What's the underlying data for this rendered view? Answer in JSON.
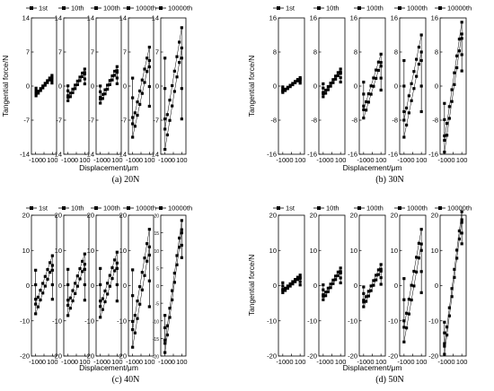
{
  "chart_data": [
    {
      "type": "scatter",
      "caption": "(a) 20N",
      "ylabel": "Tangential force/N",
      "xlabel": "Displacement/μm",
      "ylim": [
        -14,
        14
      ],
      "yticks": [
        "14",
        "7",
        "0",
        "-7",
        "-14"
      ],
      "panels": [
        {
          "legend": "1st",
          "xticks": [
            "-100",
            "0",
            "100"
          ],
          "xlim": [
            -150,
            150
          ],
          "loop": {
            "xmin": -95,
            "xmax": 95,
            "ylo": -2.0,
            "yhi": 2.2,
            "w": 20
          }
        },
        {
          "legend": "10th",
          "xticks": [
            "-100",
            "0",
            "100"
          ],
          "xlim": [
            -150,
            150
          ],
          "loop": {
            "xmin": -100,
            "xmax": 100,
            "ylo": -3.0,
            "yhi": 3.5,
            "w": 25
          }
        },
        {
          "legend": "100th",
          "xticks": [
            "-100",
            "0",
            "100"
          ],
          "xlim": [
            -150,
            150
          ],
          "loop": {
            "xmin": -100,
            "xmax": 100,
            "ylo": -3.5,
            "yhi": 4.0,
            "w": 25
          }
        },
        {
          "legend": "1000th",
          "xticks": [
            "-100",
            "0",
            "100"
          ],
          "xlim": [
            -150,
            150
          ],
          "loop": {
            "xmin": -100,
            "xmax": 100,
            "ylo": -10.5,
            "yhi": 8.0,
            "w": 35
          }
        },
        {
          "legend": "10000th",
          "xticks": [
            "-100",
            "0",
            "100"
          ],
          "xlim": [
            -150,
            150
          ],
          "loop": {
            "xmin": -100,
            "xmax": 100,
            "ylo": -13.0,
            "yhi": 12.0,
            "w": 40
          }
        }
      ]
    },
    {
      "type": "scatter",
      "caption": "(b) 30N",
      "ylabel": "Tangential force/N",
      "xlabel": "Displacement/μm",
      "ylim": [
        -16,
        16
      ],
      "yticks": [
        "16",
        "8",
        "0",
        "-8",
        "-16"
      ],
      "panels": [
        {
          "legend": "1st",
          "xticks": [
            "-100",
            "0",
            "100"
          ],
          "xlim": [
            -150,
            150
          ],
          "loop": {
            "xmin": -100,
            "xmax": 100,
            "ylo": -1.5,
            "yhi": 2.0,
            "w": 20
          }
        },
        {
          "legend": "10th",
          "xticks": [
            "-100",
            "0",
            "100"
          ],
          "xlim": [
            -150,
            150
          ],
          "loop": {
            "xmin": -100,
            "xmax": 100,
            "ylo": -2.5,
            "yhi": 4.0,
            "w": 25
          }
        },
        {
          "legend": "100th",
          "xticks": [
            "-100",
            "0",
            "100"
          ],
          "xlim": [
            -150,
            150
          ],
          "loop": {
            "xmin": -100,
            "xmax": 100,
            "ylo": -7.5,
            "yhi": 7.5,
            "w": 30
          }
        },
        {
          "legend": "1000th",
          "xticks": [
            "-100",
            "0",
            "100"
          ],
          "xlim": [
            -150,
            150
          ],
          "loop": {
            "xmin": -100,
            "xmax": 100,
            "ylo": -12.0,
            "yhi": 12.0,
            "w": 40
          }
        },
        {
          "legend": "10000th",
          "xticks": [
            "-100",
            "0",
            "100"
          ],
          "xlim": [
            -150,
            150
          ],
          "loop": {
            "xmin": -100,
            "xmax": 100,
            "ylo": -15.5,
            "yhi": 15.0,
            "w": 20
          }
        }
      ]
    },
    {
      "type": "scatter",
      "caption": "(c) 40N",
      "ylabel": "",
      "xlabel": "Displacement/μm",
      "ylim": [
        -20,
        20
      ],
      "yticks": [
        "20",
        "10",
        "0",
        "-10",
        "-20"
      ],
      "panels": [
        {
          "legend": "1st",
          "xticks": [
            "-100",
            "0",
            "100"
          ],
          "xlim": [
            -150,
            150
          ],
          "loop": {
            "xmin": -100,
            "xmax": 100,
            "ylo": -8.0,
            "yhi": 8.5,
            "w": 40
          }
        },
        {
          "legend": "10th",
          "xticks": [
            "-100",
            "0",
            "100"
          ],
          "xlim": [
            -150,
            150
          ],
          "loop": {
            "xmin": -100,
            "xmax": 100,
            "ylo": -8.5,
            "yhi": 9.0,
            "w": 40
          }
        },
        {
          "legend": "100th",
          "xticks": [
            "-100",
            "0",
            "100"
          ],
          "xlim": [
            -150,
            150
          ],
          "loop": {
            "xmin": -100,
            "xmax": 100,
            "ylo": -9.0,
            "yhi": 9.5,
            "w": 40
          }
        },
        {
          "legend": "1000th",
          "xticks": [
            "-100",
            "0",
            "100"
          ],
          "xlim": [
            -150,
            150
          ],
          "loop": {
            "xmin": -100,
            "xmax": 100,
            "ylo": -17.5,
            "yhi": 16.0,
            "w": 35
          }
        },
        {
          "legend": "10000th",
          "xticks": [
            "-100",
            "0",
            "100"
          ],
          "xlim": [
            -150,
            150
          ],
          "yticks": [
            "20",
            "15",
            "10",
            "5",
            "0",
            "-5",
            "-10",
            "-15",
            "-20"
          ],
          "loop": {
            "xmin": -100,
            "xmax": 100,
            "ylo": -19.0,
            "yhi": 18.5,
            "w": 15
          }
        }
      ]
    },
    {
      "type": "scatter",
      "caption": "(d) 50N",
      "ylabel": "Tangential force/N",
      "xlabel": "Displacement/μm",
      "ylim": [
        -20,
        20
      ],
      "yticks": [
        "20",
        "10",
        "0",
        "-10",
        "-20"
      ],
      "panels": [
        {
          "legend": "1st",
          "xticks": [
            "-100",
            "0",
            "100"
          ],
          "xlim": [
            -150,
            150
          ],
          "loop": {
            "xmin": -100,
            "xmax": 100,
            "ylo": -2.0,
            "yhi": 3.0,
            "w": 30
          }
        },
        {
          "legend": "10th",
          "xticks": [
            "-100",
            "0",
            "100"
          ],
          "xlim": [
            -150,
            150
          ],
          "loop": {
            "xmin": -100,
            "xmax": 100,
            "ylo": -4.0,
            "yhi": 5.0,
            "w": 25
          }
        },
        {
          "legend": "100th",
          "xticks": [
            "-100",
            "0",
            "100"
          ],
          "xlim": [
            -150,
            150
          ],
          "loop": {
            "xmin": -100,
            "xmax": 100,
            "ylo": -6.0,
            "yhi": 6.0,
            "w": 25
          }
        },
        {
          "legend": "1000th",
          "xticks": [
            "-100",
            "0",
            "100"
          ],
          "xlim": [
            -150,
            150
          ],
          "loop": {
            "xmin": -100,
            "xmax": 100,
            "ylo": -16.0,
            "yhi": 16.0,
            "w": 30
          }
        },
        {
          "legend": "10000th",
          "xticks": [
            "-100",
            "0",
            "100"
          ],
          "xlim": [
            -150,
            150
          ],
          "loop": {
            "xmin": -100,
            "xmax": 100,
            "ylo": -19.5,
            "yhi": 21.0,
            "w": 12
          }
        }
      ]
    }
  ]
}
